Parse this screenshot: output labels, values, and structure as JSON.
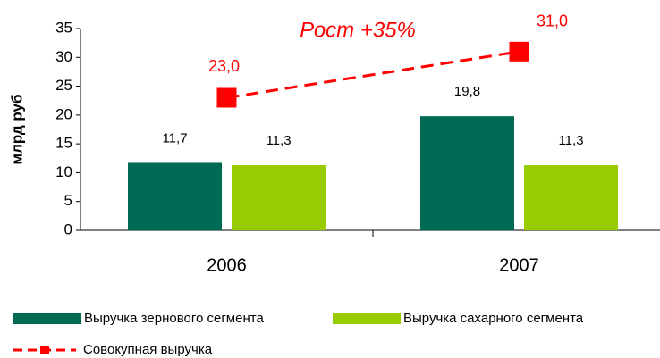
{
  "chart_data": {
    "type": "bar",
    "ylabel": "млрд руб",
    "annotation": "Рост +35%",
    "categories": [
      "2006",
      "2007"
    ],
    "series": [
      {
        "name": "Выручка зернового сегмента",
        "type": "bar",
        "color": "#006B54",
        "values": [
          11.7,
          19.8
        ],
        "value_labels": [
          "11,7",
          "19,8"
        ]
      },
      {
        "name": "Выручка сахарного сегмента",
        "type": "bar",
        "color": "#99CC00",
        "values": [
          11.3,
          11.3
        ],
        "value_labels": [
          "11,3",
          "11,3"
        ]
      },
      {
        "name": "Совокупная выручка",
        "type": "line",
        "color": "#FF0000",
        "values": [
          23.0,
          31.0
        ],
        "value_labels": [
          "23,0",
          "31,0"
        ]
      }
    ],
    "ylim": [
      0,
      35
    ],
    "yticks": [
      0,
      5,
      10,
      15,
      20,
      25,
      30,
      35
    ]
  }
}
